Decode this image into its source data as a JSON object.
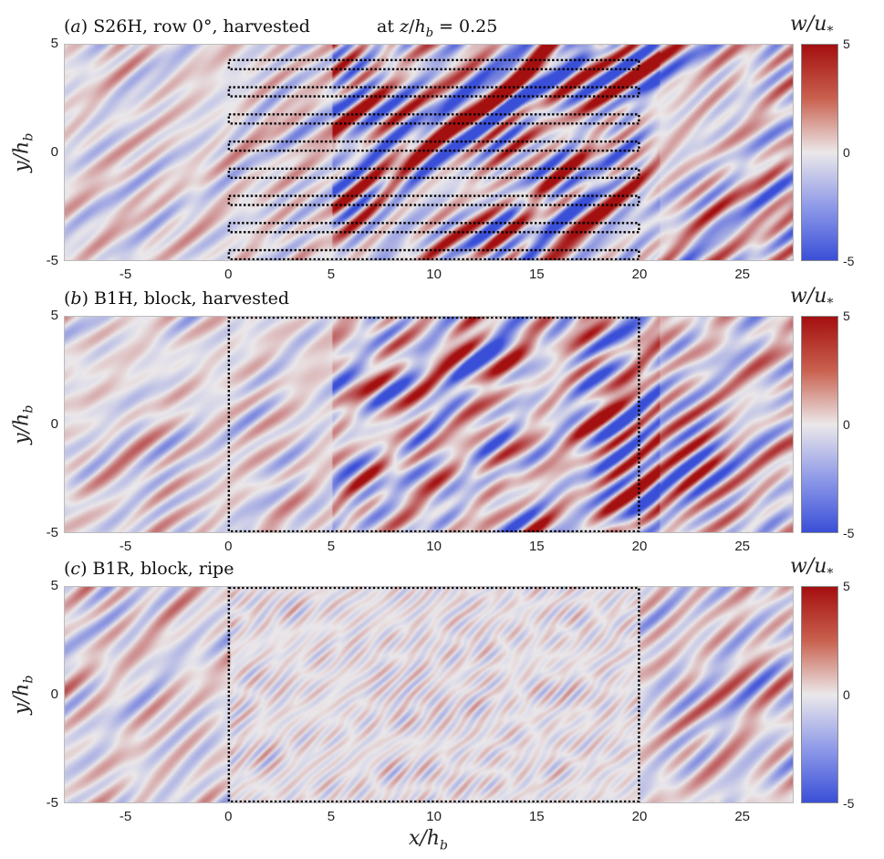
{
  "figure": {
    "suptitle": "at z/h_b = 0.25",
    "colormap": {
      "low": "#3a4fd8",
      "mid": "#ebe8ea",
      "high": "#a40f0f"
    }
  },
  "panels": [
    {
      "id": "a",
      "tag": "(a)",
      "title": "S26H, row 0°, harvested",
      "ylabel": "y/h_b",
      "cbar_label": "w/u*",
      "outline": "rows"
    },
    {
      "id": "b",
      "tag": "(b)",
      "title": "B1H, block, harvested",
      "ylabel": "y/h_b",
      "cbar_label": "w/u*",
      "outline": "block"
    },
    {
      "id": "c",
      "tag": "(c)",
      "title": "B1R, block, ripe",
      "ylabel": "y/h_b",
      "cbar_label": "w/u*",
      "outline": "block"
    }
  ],
  "axes": {
    "xlabel": "x/h_b",
    "xticks": [
      "-5",
      "0",
      "5",
      "10",
      "15",
      "20",
      "25"
    ],
    "yticks": [
      "5",
      "0",
      "-5"
    ],
    "cbar_ticks": [
      "5",
      "0",
      "-5"
    ]
  },
  "chart_data": {
    "type": "heatmap",
    "title": "Instantaneous vertical velocity w/u* at z/h_b = 0.25",
    "xlabel": "x/h_b",
    "ylabel": "y/h_b",
    "xlim": [
      -8,
      27.5
    ],
    "ylim": [
      -5,
      5
    ],
    "xticks": [
      -5,
      0,
      5,
      10,
      15,
      20,
      25
    ],
    "yticks": [
      -5,
      0,
      5
    ],
    "colorbar": {
      "label": "w/u*",
      "range": [
        -5,
        5
      ],
      "ticks": [
        -5,
        0,
        5
      ],
      "colormap": "blue-white-red diverging"
    },
    "grid": false,
    "panels": [
      {
        "label": "(a) S26H, row 0°, harvested",
        "canopy_region": {
          "x": [
            0,
            20
          ],
          "y": [
            -5,
            5
          ],
          "type": "8 dotted row strips"
        },
        "character": "strong streaky structures, high amplitude in canopy region"
      },
      {
        "label": "(b) B1H, block, harvested",
        "canopy_region": {
          "x": [
            0,
            20
          ],
          "y": [
            -5,
            5
          ],
          "type": "dotted block outline"
        },
        "character": "strong inclined streaks, high amplitude from x≈7 to 20"
      },
      {
        "label": "(c) B1R, block, ripe",
        "canopy_region": {
          "x": [
            0,
            20
          ],
          "y": [
            -5,
            5
          ],
          "type": "dotted block outline"
        },
        "character": "weak small-scale fluctuations inside canopy; stronger patches downstream x>20"
      }
    ]
  }
}
